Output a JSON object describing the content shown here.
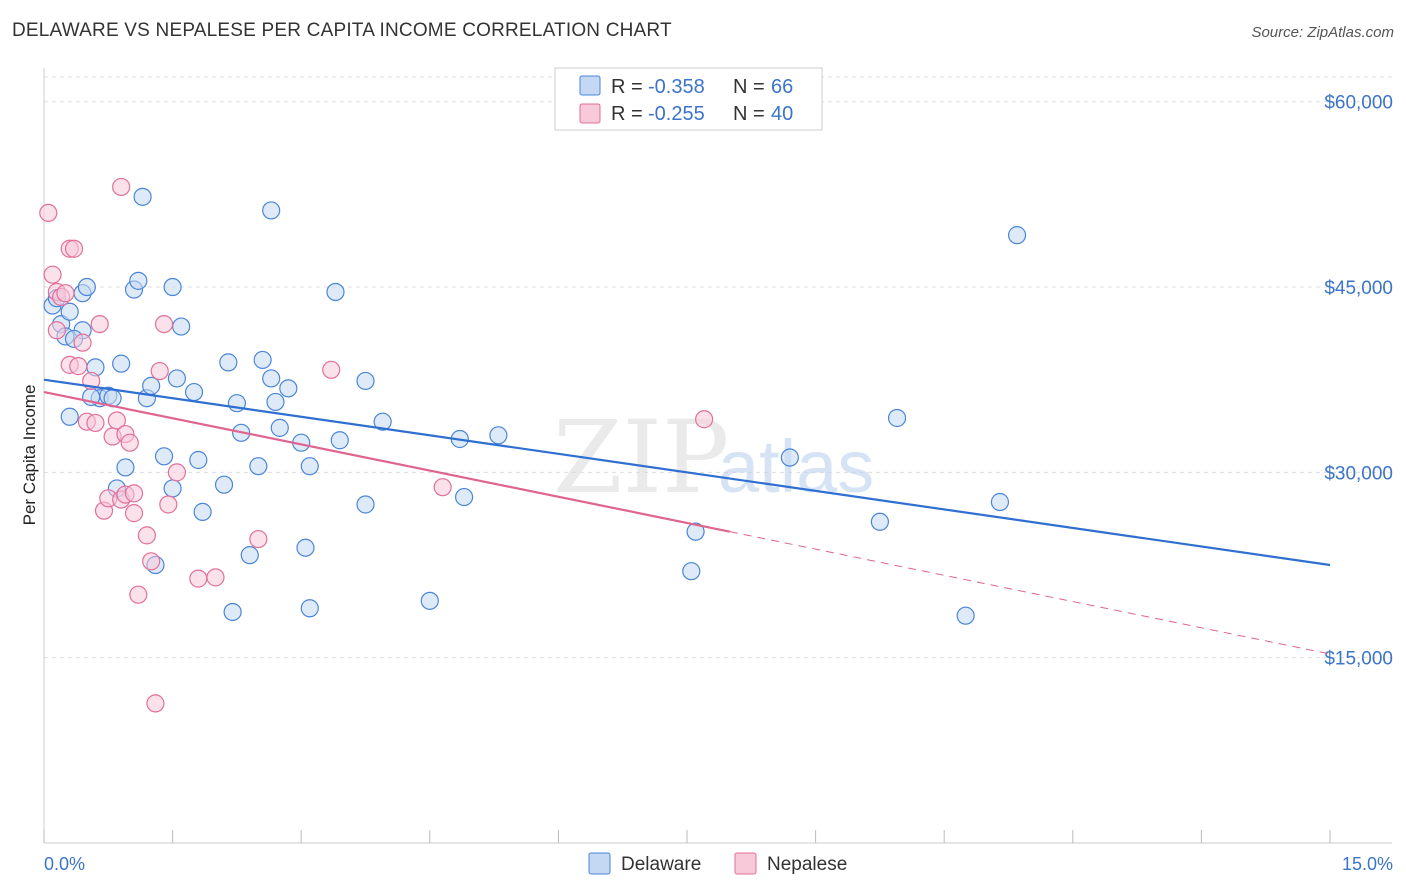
{
  "header": {
    "title": "DELAWARE VS NEPALESE PER CAPITA INCOME CORRELATION CHART",
    "source": "Source: ZipAtlas.com"
  },
  "watermark": {
    "zip": "ZIP",
    "atlas": "atlas"
  },
  "colors": {
    "delaware": "#4a86d8",
    "delaware_fill": "#c4d8f3",
    "nepalese": "#e2709a",
    "nepalese_fill": "#f7c9d9",
    "axis_label": "#3b74c9",
    "grid": "#dddddd"
  },
  "legend": {
    "rows": [
      {
        "r_label": "R = ",
        "r_value": "-0.358",
        "n_label": "N = ",
        "n_value": "66"
      },
      {
        "r_label": "R = ",
        "r_value": "-0.255",
        "n_label": "N = ",
        "n_value": "40"
      }
    ]
  },
  "chart_data": {
    "type": "scatter",
    "title": "DELAWARE VS NEPALESE PER CAPITA INCOME CORRELATION CHART",
    "xlabel": "",
    "ylabel": "Per Capita Income",
    "xlim": [
      0,
      15
    ],
    "ylim": [
      0,
      62000
    ],
    "x_tick_labels": [
      "0.0%",
      "15.0%"
    ],
    "y_ticks": [
      15000,
      30000,
      45000,
      60000
    ],
    "y_tick_labels": [
      "$15,000",
      "$30,000",
      "$45,000",
      "$60,000"
    ],
    "grid": true,
    "legend_position": "top-center",
    "series": [
      {
        "name": "Delaware",
        "r": -0.358,
        "n": 66,
        "trend": {
          "x0": 0,
          "y0": 37500,
          "x1": 15,
          "y1": 22500
        },
        "points": [
          [
            0.1,
            43500
          ],
          [
            0.2,
            42000
          ],
          [
            0.25,
            41000
          ],
          [
            0.3,
            43000
          ],
          [
            0.45,
            44500
          ],
          [
            0.5,
            45000
          ],
          [
            0.45,
            41500
          ],
          [
            0.3,
            34500
          ],
          [
            0.6,
            38500
          ],
          [
            0.65,
            36000
          ],
          [
            0.75,
            36200
          ],
          [
            0.8,
            36000
          ],
          [
            0.9,
            38800
          ],
          [
            0.85,
            28700
          ],
          [
            0.95,
            30400
          ],
          [
            1.05,
            44800
          ],
          [
            1.1,
            45500
          ],
          [
            1.15,
            52300
          ],
          [
            1.2,
            36000
          ],
          [
            1.25,
            37000
          ],
          [
            1.5,
            45000
          ],
          [
            1.6,
            41800
          ],
          [
            1.75,
            36500
          ],
          [
            1.55,
            37600
          ],
          [
            1.5,
            28700
          ],
          [
            1.4,
            31300
          ],
          [
            1.3,
            22500
          ],
          [
            1.8,
            31000
          ],
          [
            1.85,
            26800
          ],
          [
            2.1,
            29000
          ],
          [
            2.15,
            38900
          ],
          [
            2.25,
            35600
          ],
          [
            2.3,
            33200
          ],
          [
            2.4,
            23300
          ],
          [
            2.5,
            30500
          ],
          [
            2.55,
            39100
          ],
          [
            2.2,
            18700
          ],
          [
            2.65,
            51200
          ],
          [
            2.65,
            37600
          ],
          [
            2.7,
            35700
          ],
          [
            2.75,
            33600
          ],
          [
            2.85,
            36800
          ],
          [
            3.0,
            32400
          ],
          [
            3.1,
            30500
          ],
          [
            3.05,
            23900
          ],
          [
            3.1,
            19000
          ],
          [
            3.4,
            44600
          ],
          [
            3.45,
            32600
          ],
          [
            3.75,
            37400
          ],
          [
            3.75,
            27400
          ],
          [
            3.95,
            34100
          ],
          [
            4.5,
            19600
          ],
          [
            4.85,
            32700
          ],
          [
            4.9,
            28000
          ],
          [
            5.3,
            33000
          ],
          [
            7.55,
            22000
          ],
          [
            7.6,
            25200
          ],
          [
            8.7,
            31200
          ],
          [
            9.75,
            26000
          ],
          [
            9.95,
            34400
          ],
          [
            10.75,
            18400
          ],
          [
            11.15,
            27600
          ],
          [
            11.35,
            49200
          ],
          [
            0.15,
            44100
          ],
          [
            0.35,
            40800
          ],
          [
            0.55,
            36100
          ]
        ]
      },
      {
        "name": "Nepalese",
        "r": -0.255,
        "n": 40,
        "trend": {
          "x0": 0,
          "y0": 36500,
          "x1": 8.0,
          "y1": 25200,
          "dash_x1": 15,
          "dash_y1": 15300
        },
        "points": [
          [
            0.05,
            51000
          ],
          [
            0.1,
            46000
          ],
          [
            0.15,
            44600
          ],
          [
            0.2,
            44200
          ],
          [
            0.25,
            44500
          ],
          [
            0.3,
            48100
          ],
          [
            0.35,
            48100
          ],
          [
            0.3,
            38700
          ],
          [
            0.4,
            38600
          ],
          [
            0.45,
            40500
          ],
          [
            0.5,
            34100
          ],
          [
            0.55,
            37400
          ],
          [
            0.6,
            34000
          ],
          [
            0.65,
            42000
          ],
          [
            0.7,
            26900
          ],
          [
            0.75,
            27900
          ],
          [
            0.8,
            32900
          ],
          [
            0.85,
            34200
          ],
          [
            0.9,
            27800
          ],
          [
            0.95,
            33100
          ],
          [
            1.0,
            32400
          ],
          [
            0.95,
            28200
          ],
          [
            1.05,
            26700
          ],
          [
            0.9,
            53100
          ],
          [
            1.1,
            20100
          ],
          [
            1.2,
            24900
          ],
          [
            1.25,
            22800
          ],
          [
            1.3,
            11300
          ],
          [
            1.35,
            38200
          ],
          [
            1.4,
            42000
          ],
          [
            1.45,
            27400
          ],
          [
            1.55,
            30000
          ],
          [
            1.8,
            21400
          ],
          [
            2.0,
            21500
          ],
          [
            2.5,
            24600
          ],
          [
            3.35,
            38300
          ],
          [
            4.65,
            28800
          ],
          [
            7.7,
            34300
          ],
          [
            0.15,
            41500
          ],
          [
            1.05,
            28300
          ]
        ]
      }
    ]
  }
}
